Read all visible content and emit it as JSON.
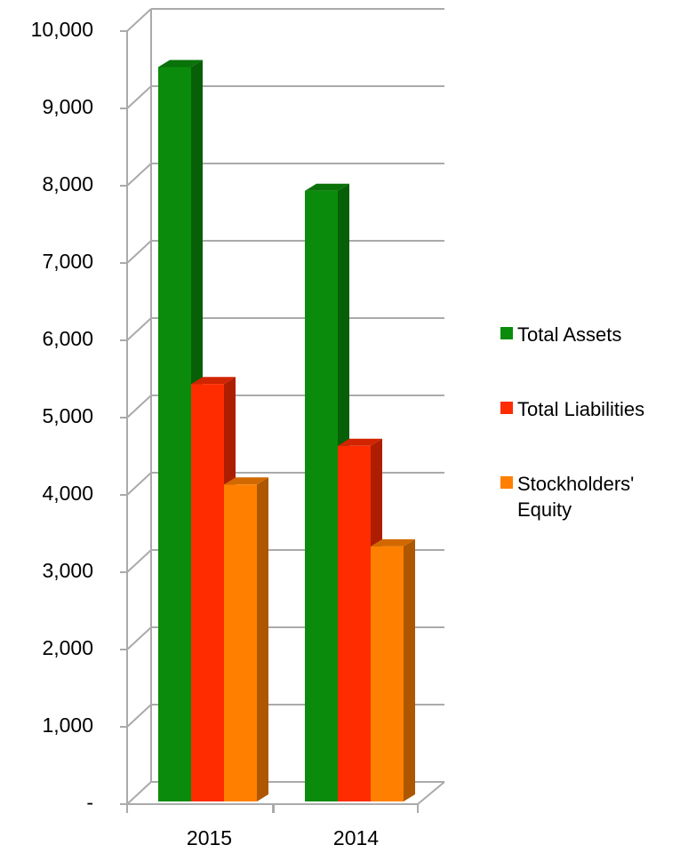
{
  "chart_data": {
    "type": "bar3d",
    "categories": [
      "2015",
      "2014"
    ],
    "series": [
      {
        "name": "Total Assets",
        "color": "#0b8b0b",
        "values": [
          9500,
          7900
        ]
      },
      {
        "name": "Total Liabilities",
        "color": "#ff2c00",
        "values": [
          5400,
          4600
        ]
      },
      {
        "name": "Stockholders' Equity",
        "color": "#ff8000",
        "values": [
          4100,
          3300
        ]
      }
    ],
    "ylim": [
      0,
      10000
    ],
    "yticks": [
      {
        "value": 0,
        "label": "-"
      },
      {
        "value": 1000,
        "label": "1,000"
      },
      {
        "value": 2000,
        "label": "2,000"
      },
      {
        "value": 3000,
        "label": "3,000"
      },
      {
        "value": 4000,
        "label": "4,000"
      },
      {
        "value": 5000,
        "label": "5,000"
      },
      {
        "value": 6000,
        "label": "6,000"
      },
      {
        "value": 7000,
        "label": "7,000"
      },
      {
        "value": 8000,
        "label": "8,000"
      },
      {
        "value": 9000,
        "label": "9,000"
      },
      {
        "value": 10000,
        "label": "10,000"
      }
    ],
    "grid": true,
    "legend": "right"
  }
}
